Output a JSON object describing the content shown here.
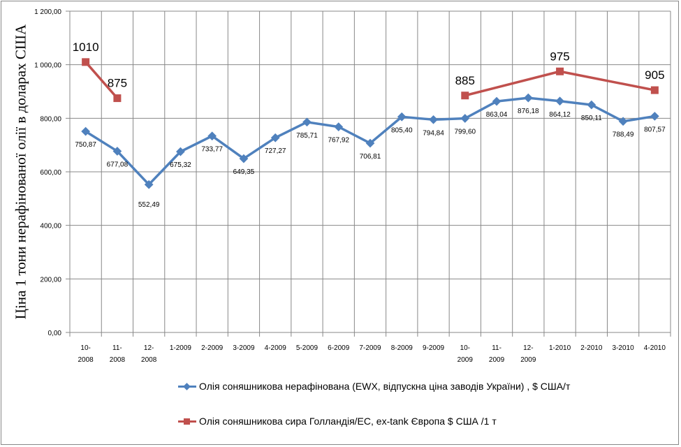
{
  "chart_data": {
    "type": "line",
    "title": "",
    "xlabel": "",
    "ylabel": "Ціна 1 тони нерафінованої олії в доларах США",
    "ylim": [
      0,
      1200
    ],
    "yticks": [
      "0,00",
      "200,00",
      "400,00",
      "600,00",
      "800,00",
      "1 000,00",
      "1 200,00"
    ],
    "ytick_values": [
      0,
      200,
      400,
      600,
      800,
      1000,
      1200
    ],
    "grid": true,
    "legend_placement": "bottom",
    "categories": [
      [
        "10-",
        "2008"
      ],
      [
        "11-",
        "2008"
      ],
      [
        "12-",
        "2008"
      ],
      [
        "1-2009"
      ],
      [
        "2-2009"
      ],
      [
        "3-2009"
      ],
      [
        "4-2009"
      ],
      [
        "5-2009"
      ],
      [
        "6-2009"
      ],
      [
        "7-2009"
      ],
      [
        "8-2009"
      ],
      [
        "9-2009"
      ],
      [
        "10-",
        "2009"
      ],
      [
        "11-",
        "2009"
      ],
      [
        "12-",
        "2009"
      ],
      [
        "1-2010"
      ],
      [
        "2-2010"
      ],
      [
        "3-2010"
      ],
      [
        "4-2010"
      ]
    ],
    "series": [
      {
        "name": "Олія соняшникова нерафінована (EWX, відпускна ціна заводів України) , $ США/т",
        "color": "#4f81bd",
        "marker": "diamond",
        "values": [
          750.87,
          677.08,
          552.49,
          675.32,
          733.77,
          649.35,
          727.27,
          785.71,
          767.92,
          706.81,
          805.4,
          794.84,
          799.6,
          863.04,
          876.18,
          864.12,
          850.11,
          788.49,
          807.57
        ],
        "labels": [
          "750,87",
          "677,08",
          "552,49",
          "675,32",
          "733,77",
          "649,35",
          "727,27",
          "785,71",
          "767,92",
          "706,81",
          "805,40",
          "794,84",
          "799,60",
          "863,04",
          "876,18",
          "864,12",
          "850,11",
          "788,49",
          "807,57"
        ]
      },
      {
        "name": "Олія соняшникова сира Голландія/ЕС, ex-tank Європа $ США /1 т",
        "color": "#c0504d",
        "marker": "square",
        "values": [
          1010,
          875,
          null,
          null,
          null,
          null,
          null,
          null,
          null,
          null,
          null,
          null,
          885,
          null,
          null,
          975,
          null,
          null,
          905
        ],
        "labels": [
          "1010",
          "875",
          null,
          null,
          null,
          null,
          null,
          null,
          null,
          null,
          null,
          null,
          "885",
          null,
          null,
          "975",
          null,
          null,
          "905"
        ]
      }
    ]
  }
}
